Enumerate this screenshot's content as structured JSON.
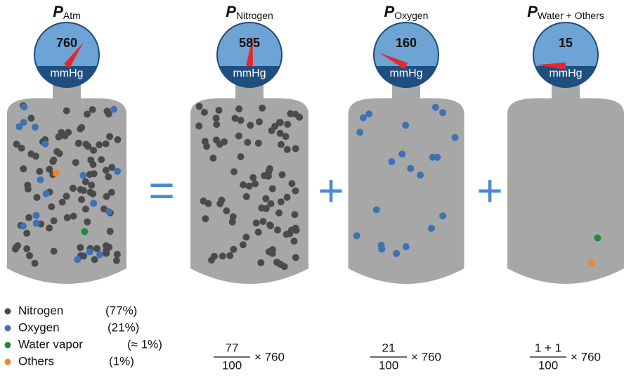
{
  "columns": [
    {
      "symbol": "P",
      "subscript": "Atm",
      "gauge": {
        "value": 760,
        "unit": "mmHg"
      }
    },
    {
      "symbol": "P",
      "subscript": "Nitrogen",
      "gauge": {
        "value": 585,
        "unit": "mmHg"
      },
      "formula": {
        "numerator": "77",
        "denominator": "100",
        "multiplier": "× 760"
      }
    },
    {
      "symbol": "P",
      "subscript": "Oxygen",
      "gauge": {
        "value": 160,
        "unit": "mmHg"
      },
      "formula": {
        "numerator": "21",
        "denominator": "100",
        "multiplier": "× 760"
      }
    },
    {
      "symbol": "P",
      "subscript": "Water + Others",
      "gauge": {
        "value": 15,
        "unit": "mmHg"
      },
      "formula": {
        "numerator": "1 + 1",
        "denominator": "100",
        "multiplier": "× 760"
      }
    }
  ],
  "operators": [
    "=",
    "+",
    "+"
  ],
  "legend": [
    {
      "label": "Nitrogen",
      "share": "(77%)",
      "color": "#4a4a4a"
    },
    {
      "label": "Oxygen",
      "share": "(21%)",
      "color": "#3d72b4"
    },
    {
      "label": "Water vapor",
      "share": "(≈ 1%)",
      "color": "#1f8a3f"
    },
    {
      "label": "Others",
      "share": "(1%)",
      "color": "#f08432"
    }
  ]
}
